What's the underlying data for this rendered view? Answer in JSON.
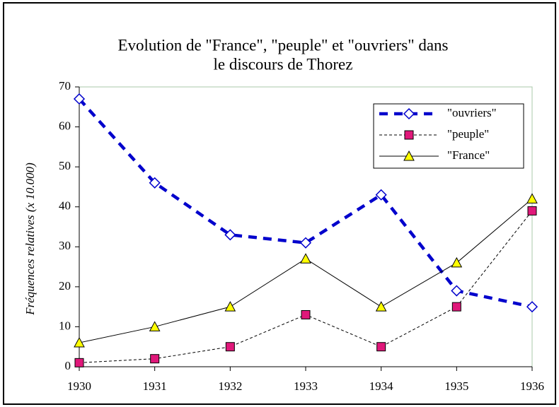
{
  "chart_data": {
    "type": "line",
    "title": [
      "Evolution de \"France\", \"peuple\" et \"ouvriers\" dans",
      "le discours de Thorez"
    ],
    "y_label": "Fréquences relatives (x 10.000)",
    "x": [
      1930,
      1931,
      1932,
      1933,
      1934,
      1935,
      1936
    ],
    "xlim": [
      1930,
      1936
    ],
    "xticks": [
      1930,
      1931,
      1932,
      1933,
      1934,
      1935,
      1936
    ],
    "ylim": [
      0,
      70
    ],
    "yticks": [
      0,
      10,
      20,
      30,
      40,
      50,
      60,
      70
    ],
    "grid": false,
    "legend": "upper right",
    "series": [
      {
        "name": "\"ouvriers\"",
        "color": "#0000cc",
        "dash": "12 9",
        "width": 4.5,
        "marker": "diamond",
        "marker_fill": "#ffffff",
        "values": [
          67,
          46,
          33,
          31,
          43,
          19,
          15
        ]
      },
      {
        "name": "\"peuple\"",
        "color": "#000000",
        "dash": "4 3",
        "width": 1,
        "marker": "square",
        "marker_fill": "#e0187a",
        "values": [
          1,
          2,
          5,
          13,
          5,
          15,
          39
        ]
      },
      {
        "name": "\"France\"",
        "color": "#000000",
        "dash": "none",
        "width": 1,
        "marker": "triangle",
        "marker_fill": "#ffff00",
        "values": [
          6,
          10,
          15,
          27,
          15,
          26,
          42
        ]
      }
    ]
  }
}
